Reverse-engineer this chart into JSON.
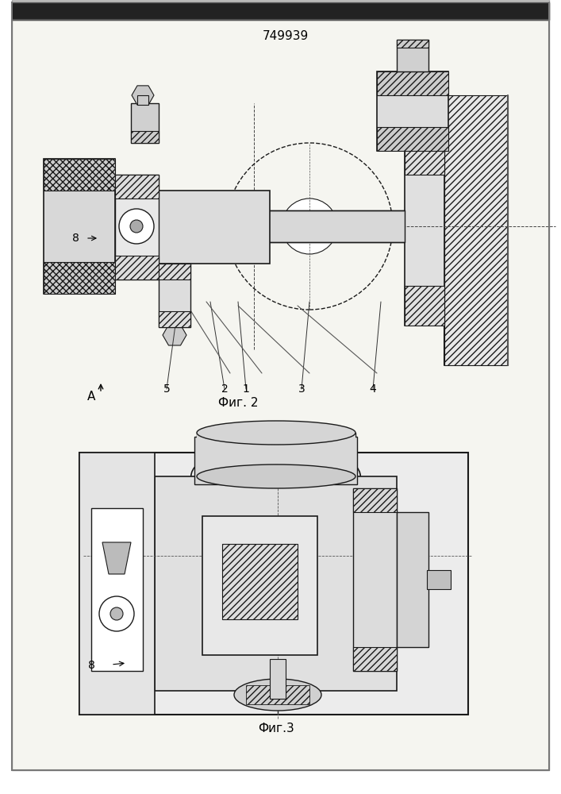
{
  "title": "749939",
  "fig2_label": "Фиг. 2",
  "fig3_label": "Фиг.3",
  "label_A": "A",
  "label_8_top": "8",
  "label_8_bottom": "8",
  "label_5": "5",
  "label_2": "2",
  "label_1": "1",
  "label_3": "3",
  "label_4": "4",
  "bg_color": "#ffffff",
  "line_color": "#1a1a1a",
  "hatch_color": "#1a1a1a",
  "border_color": "#888888",
  "fig_width": 7.07,
  "fig_height": 10.0,
  "dpi": 100
}
